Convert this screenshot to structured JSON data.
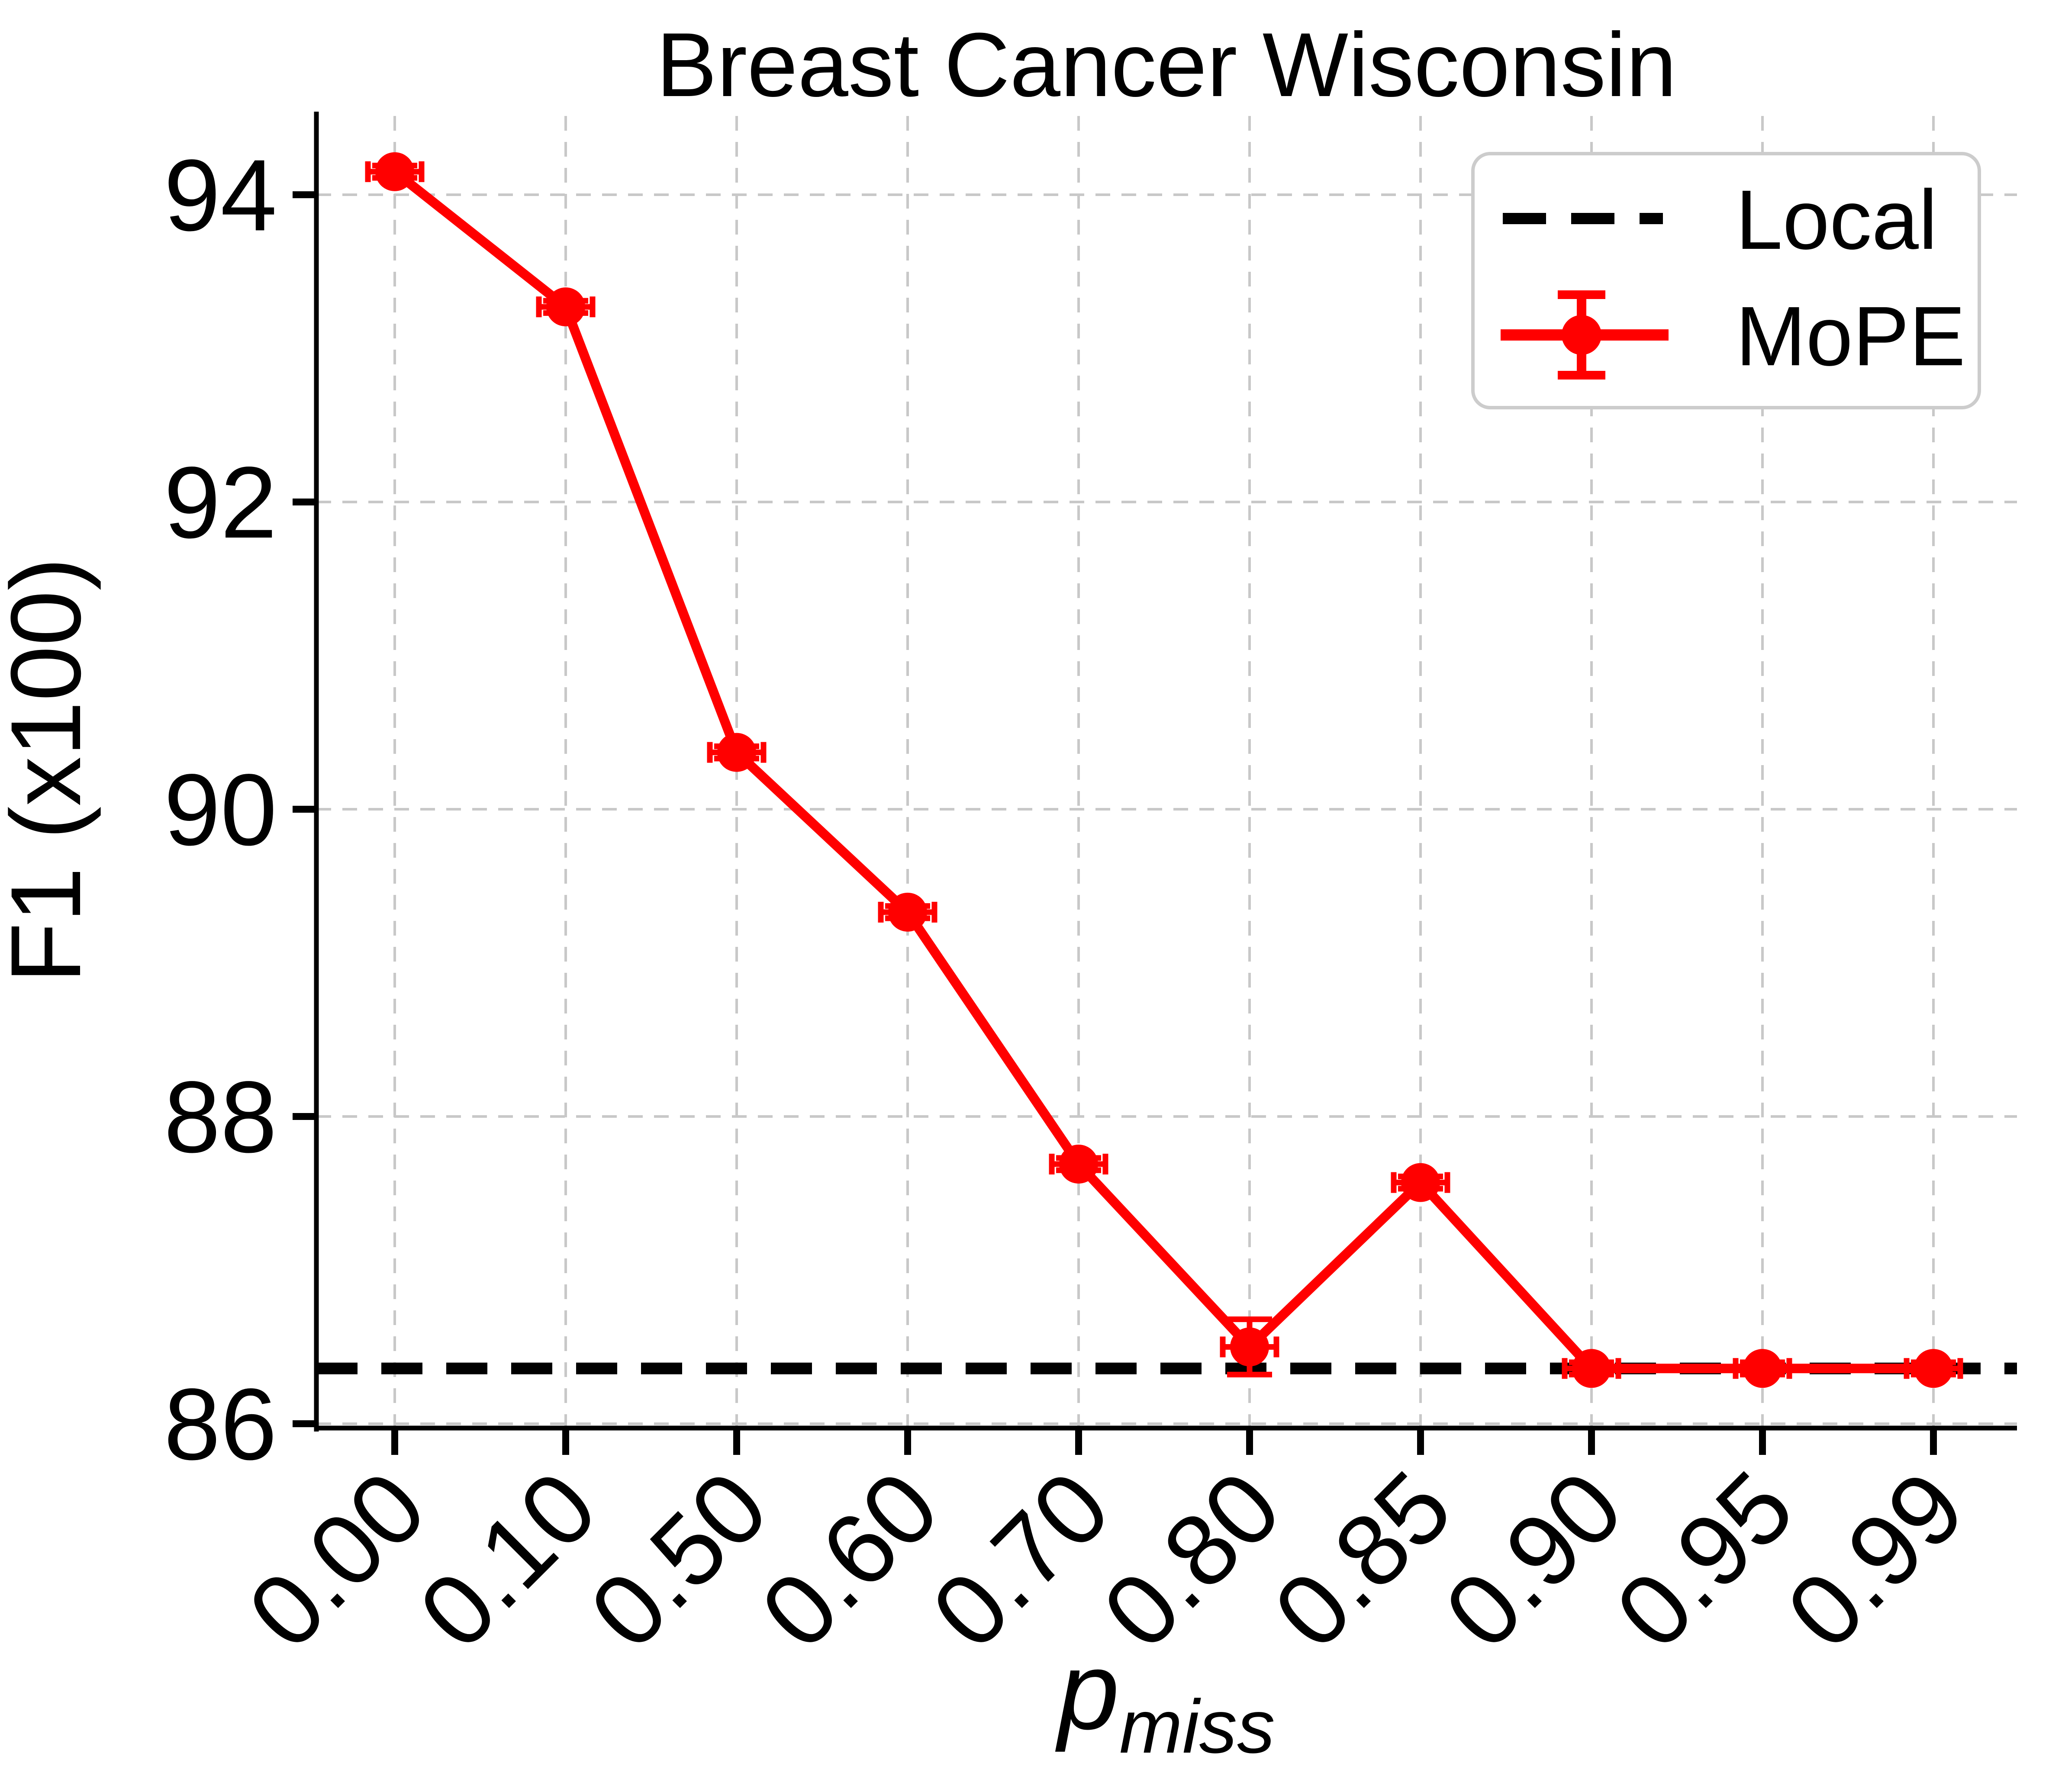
{
  "chart_data": {
    "type": "line",
    "title": "Breast Cancer Wisconsin",
    "ylabel": "F1 (x100)",
    "xlabel": "p_miss",
    "xlabel_parts": {
      "base": "p",
      "sub": "miss"
    },
    "categories": [
      "0.00",
      "0.10",
      "0.50",
      "0.60",
      "0.70",
      "0.80",
      "0.85",
      "0.90",
      "0.95",
      "0.99"
    ],
    "yticks": [
      "86",
      "88",
      "90",
      "92",
      "94"
    ],
    "ylim": [
      85.97,
      94.54
    ],
    "grid": true,
    "legend_position": "upper right",
    "series": [
      {
        "name": "Local",
        "kind": "hline",
        "style": "dashed",
        "color": "#000000",
        "value": 86.36
      },
      {
        "name": "MoPE",
        "kind": "line-markers-errorbars",
        "style": "solid",
        "color": "#ff0000",
        "values": [
          94.15,
          93.27,
          90.37,
          89.33,
          87.69,
          86.5,
          87.57,
          86.36,
          86.36,
          86.36
        ],
        "yerr": [
          0.04,
          0.04,
          0.04,
          0.04,
          0.04,
          0.18,
          0.04,
          0.04,
          0.04,
          0.04
        ]
      }
    ],
    "colors": {
      "mope": "#ff0000",
      "local": "#000000",
      "grid": "#c8c8c8",
      "legend_border": "#cccccc",
      "background": "#ffffff"
    }
  }
}
